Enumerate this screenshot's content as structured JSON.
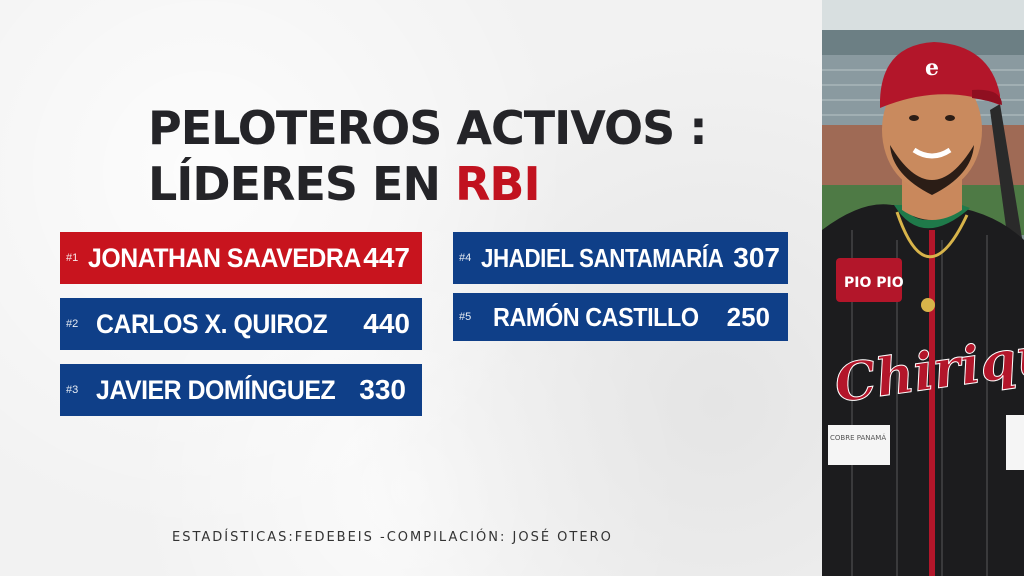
{
  "title": {
    "line1": "PELOTEROS ACTIVOS :",
    "line2_prefix": "LÍDERES EN ",
    "line2_accent": "RBI"
  },
  "leaders": [
    {
      "rank": "#1",
      "name": "JONATHAN SAAVEDRA",
      "value": "447"
    },
    {
      "rank": "#2",
      "name": "CARLOS X. QUIROZ",
      "value": "440"
    },
    {
      "rank": "#3",
      "name": "JAVIER DOMÍNGUEZ",
      "value": "330"
    },
    {
      "rank": "#4",
      "name": "JHADIEL SANTAMARÍA",
      "value": "307"
    },
    {
      "rank": "#5",
      "name": "RAMÓN CASTILLO",
      "value": "250"
    }
  ],
  "footer": "ESTADÍSTICAS:FEDEBEIS -COMPILACIÓN: JOSÉ OTERO",
  "photo": {
    "jersey_text": "Chiriquí",
    "patch_text": "PIO PIO",
    "sponsor_text": "COBRE PANAMÁ"
  },
  "colors": {
    "red": "#c8141e",
    "blue": "#0f3f88",
    "title": "#242428",
    "accent": "#c1121f"
  }
}
